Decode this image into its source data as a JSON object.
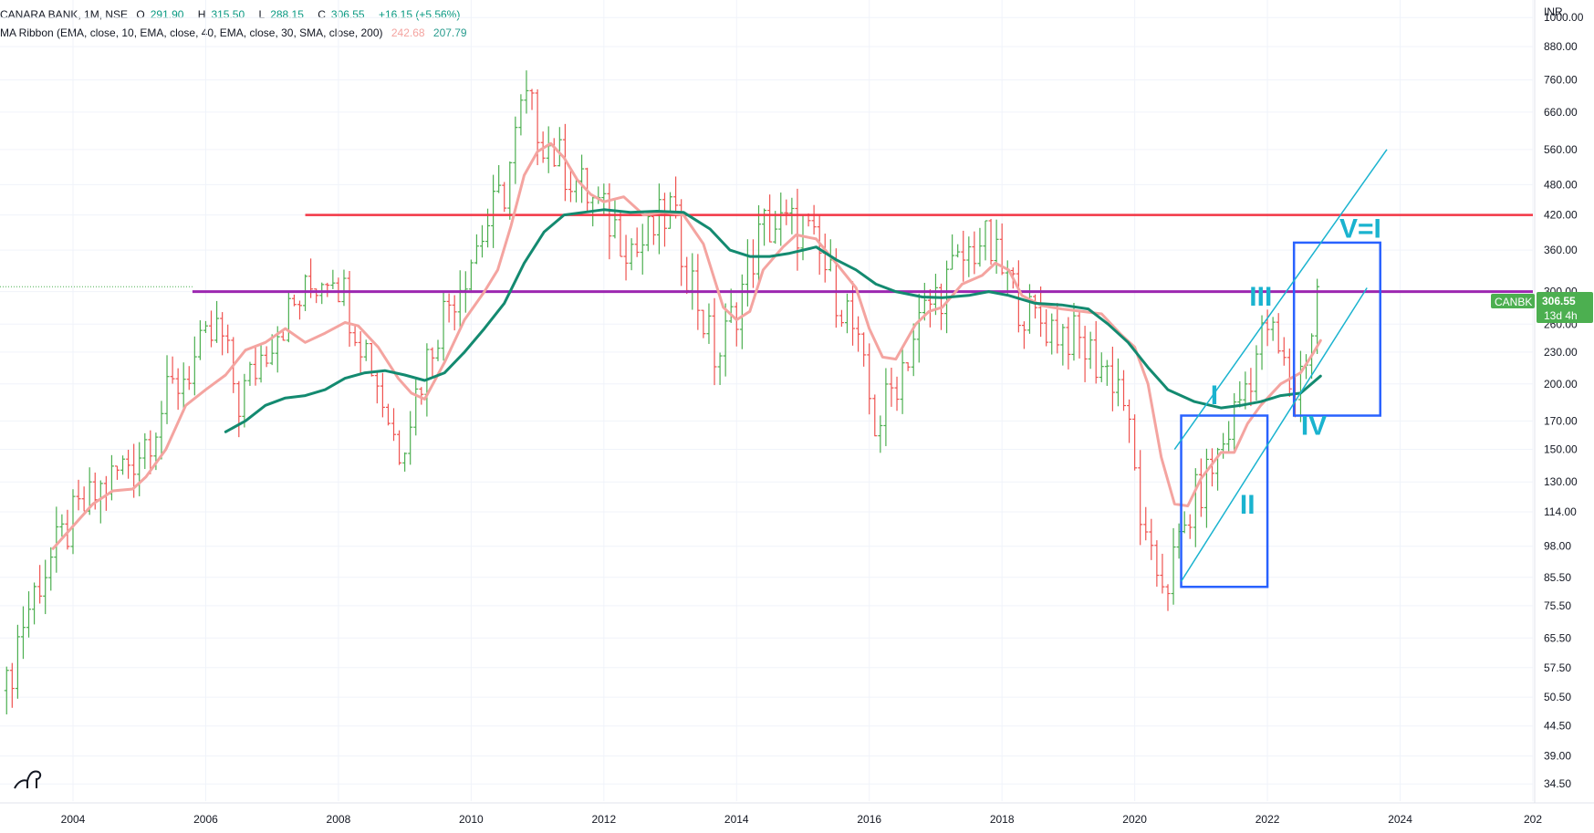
{
  "header": {
    "symbol": "CANARA BANK, 1M, NSE",
    "open_label": "O",
    "open": "291.90",
    "high_label": "H",
    "high": "315.50",
    "low_label": "L",
    "low": "288.15",
    "close_label": "C",
    "close": "306.55",
    "change": "+16.15 (+5.56%)",
    "indicator": "MA Ribbon (EMA, close, 10, EMA, close, 40, EMA, close, 30, SMA, close, 200)",
    "ma_fast_value": "242.68",
    "ma_slow_value": "207.79"
  },
  "price_badge": {
    "ticker": "CANBK",
    "price": "306.55",
    "countdown": "13d 4h"
  },
  "currency": "INR",
  "colors": {
    "up": "#4caf50",
    "down": "#ef5350",
    "ma_fast": "#f4a4a0",
    "ma_slow": "#138a70",
    "resistance": "#f23645",
    "support": "#9c27b0",
    "channel": "#1ab3cf",
    "box": "#2962ff"
  },
  "chart_data": {
    "type": "ohlc",
    "scale": "log",
    "ylim": [
      32,
      1080
    ],
    "y_ticks": [
      "1000.00",
      "880.00",
      "760.00",
      "660.00",
      "560.00",
      "480.00",
      "420.00",
      "360.00",
      "300.00",
      "260.00",
      "230.00",
      "200.00",
      "170.00",
      "150.00",
      "130.00",
      "114.00",
      "98.00",
      "85.50",
      "75.50",
      "65.50",
      "57.50",
      "50.50",
      "44.50",
      "39.00",
      "34.50"
    ],
    "x_ticks": [
      "2004",
      "2006",
      "2008",
      "2010",
      "2012",
      "2014",
      "2016",
      "2018",
      "2020",
      "2022",
      "2024",
      "202"
    ],
    "x_start": 2002.9,
    "x_end": 2026.0,
    "series": [
      {
        "name": "EMA 10",
        "role": "fast",
        "points": [
          [
            2003.7,
            97
          ],
          [
            2004.0,
            107
          ],
          [
            2004.3,
            118
          ],
          [
            2004.6,
            125
          ],
          [
            2004.9,
            126
          ],
          [
            2005.1,
            133
          ],
          [
            2005.4,
            150
          ],
          [
            2005.7,
            182
          ],
          [
            2006.0,
            195
          ],
          [
            2006.3,
            208
          ],
          [
            2006.6,
            232
          ],
          [
            2006.9,
            240
          ],
          [
            2007.2,
            255
          ],
          [
            2007.5,
            240
          ],
          [
            2007.8,
            250
          ],
          [
            2008.1,
            262
          ],
          [
            2008.3,
            258
          ],
          [
            2008.6,
            235
          ],
          [
            2008.9,
            205
          ],
          [
            2009.1,
            192
          ],
          [
            2009.3,
            187
          ],
          [
            2009.6,
            220
          ],
          [
            2009.9,
            265
          ],
          [
            2010.2,
            300
          ],
          [
            2010.4,
            330
          ],
          [
            2010.6,
            400
          ],
          [
            2010.8,
            500
          ],
          [
            2011.0,
            555
          ],
          [
            2011.2,
            575
          ],
          [
            2011.4,
            540
          ],
          [
            2011.6,
            490
          ],
          [
            2011.8,
            460
          ],
          [
            2012.0,
            445
          ],
          [
            2012.3,
            455
          ],
          [
            2012.6,
            420
          ],
          [
            2012.9,
            425
          ],
          [
            2013.2,
            420
          ],
          [
            2013.5,
            370
          ],
          [
            2013.8,
            280
          ],
          [
            2014.0,
            265
          ],
          [
            2014.2,
            275
          ],
          [
            2014.4,
            330
          ],
          [
            2014.7,
            365
          ],
          [
            2014.9,
            385
          ],
          [
            2015.2,
            378
          ],
          [
            2015.5,
            340
          ],
          [
            2015.8,
            305
          ],
          [
            2016.0,
            255
          ],
          [
            2016.2,
            225
          ],
          [
            2016.4,
            223
          ],
          [
            2016.7,
            260
          ],
          [
            2016.9,
            275
          ],
          [
            2017.1,
            280
          ],
          [
            2017.4,
            310
          ],
          [
            2017.7,
            322
          ],
          [
            2017.9,
            340
          ],
          [
            2018.1,
            330
          ],
          [
            2018.3,
            295
          ],
          [
            2018.6,
            282
          ],
          [
            2018.9,
            278
          ],
          [
            2019.2,
            275
          ],
          [
            2019.5,
            272
          ],
          [
            2019.8,
            248
          ],
          [
            2020.0,
            235
          ],
          [
            2020.2,
            200
          ],
          [
            2020.4,
            145
          ],
          [
            2020.6,
            118
          ],
          [
            2020.8,
            117
          ],
          [
            2021.0,
            132
          ],
          [
            2021.3,
            148
          ],
          [
            2021.5,
            148
          ],
          [
            2021.7,
            168
          ],
          [
            2021.9,
            182
          ],
          [
            2022.2,
            200
          ],
          [
            2022.5,
            210
          ],
          [
            2022.7,
            230
          ],
          [
            2022.8,
            242
          ]
        ]
      },
      {
        "name": "EMA 40",
        "role": "slow",
        "points": [
          [
            2006.3,
            162
          ],
          [
            2006.6,
            170
          ],
          [
            2006.9,
            182
          ],
          [
            2007.2,
            188
          ],
          [
            2007.5,
            190
          ],
          [
            2007.8,
            195
          ],
          [
            2008.1,
            205
          ],
          [
            2008.4,
            210
          ],
          [
            2008.7,
            212
          ],
          [
            2009.0,
            208
          ],
          [
            2009.3,
            203
          ],
          [
            2009.6,
            210
          ],
          [
            2009.9,
            230
          ],
          [
            2010.2,
            255
          ],
          [
            2010.5,
            285
          ],
          [
            2010.8,
            340
          ],
          [
            2011.1,
            390
          ],
          [
            2011.4,
            420
          ],
          [
            2011.7,
            425
          ],
          [
            2012.0,
            430
          ],
          [
            2012.4,
            425
          ],
          [
            2012.8,
            427
          ],
          [
            2013.2,
            425
          ],
          [
            2013.6,
            395
          ],
          [
            2013.9,
            360
          ],
          [
            2014.2,
            350
          ],
          [
            2014.5,
            350
          ],
          [
            2014.8,
            355
          ],
          [
            2015.2,
            365
          ],
          [
            2015.5,
            345
          ],
          [
            2015.8,
            330
          ],
          [
            2016.1,
            310
          ],
          [
            2016.4,
            300
          ],
          [
            2016.8,
            293
          ],
          [
            2017.1,
            292
          ],
          [
            2017.5,
            295
          ],
          [
            2017.8,
            300
          ],
          [
            2018.1,
            295
          ],
          [
            2018.5,
            285
          ],
          [
            2018.9,
            283
          ],
          [
            2019.3,
            278
          ],
          [
            2019.6,
            260
          ],
          [
            2019.9,
            240
          ],
          [
            2020.2,
            215
          ],
          [
            2020.5,
            195
          ],
          [
            2020.9,
            185
          ],
          [
            2021.3,
            180
          ],
          [
            2021.6,
            182
          ],
          [
            2021.9,
            185
          ],
          [
            2022.2,
            190
          ],
          [
            2022.5,
            192
          ],
          [
            2022.8,
            207
          ]
        ]
      }
    ],
    "levels": [
      {
        "name": "resistance",
        "value": 420,
        "x_from": 2007.5
      },
      {
        "name": "support",
        "value": 300,
        "x_from": 2005.8
      }
    ],
    "last_price_ref": {
      "value": 306.55
    },
    "annotations": [
      {
        "label": "I",
        "x": 2021.2,
        "y": 183
      },
      {
        "label": "II",
        "x": 2021.7,
        "y": 113
      },
      {
        "label": "III",
        "x": 2021.9,
        "y": 282
      },
      {
        "label": "IV",
        "x": 2022.7,
        "y": 160
      },
      {
        "label": "V=I",
        "x": 2023.4,
        "y": 380
      }
    ],
    "boxes": [
      {
        "name": "wave-1-2-box",
        "x0": 2020.7,
        "x1": 2022.0,
        "y0": 82,
        "y1": 174
      },
      {
        "name": "wave-4-5-box",
        "x0": 2022.4,
        "x1": 2023.7,
        "y0": 174,
        "y1": 372
      }
    ],
    "channel_lines": [
      {
        "name": "channel-upper",
        "from": [
          2020.6,
          150
        ],
        "to": [
          2023.8,
          560
        ]
      },
      {
        "name": "channel-lower",
        "from": [
          2020.7,
          84
        ],
        "to": [
          2023.5,
          305
        ]
      }
    ]
  }
}
